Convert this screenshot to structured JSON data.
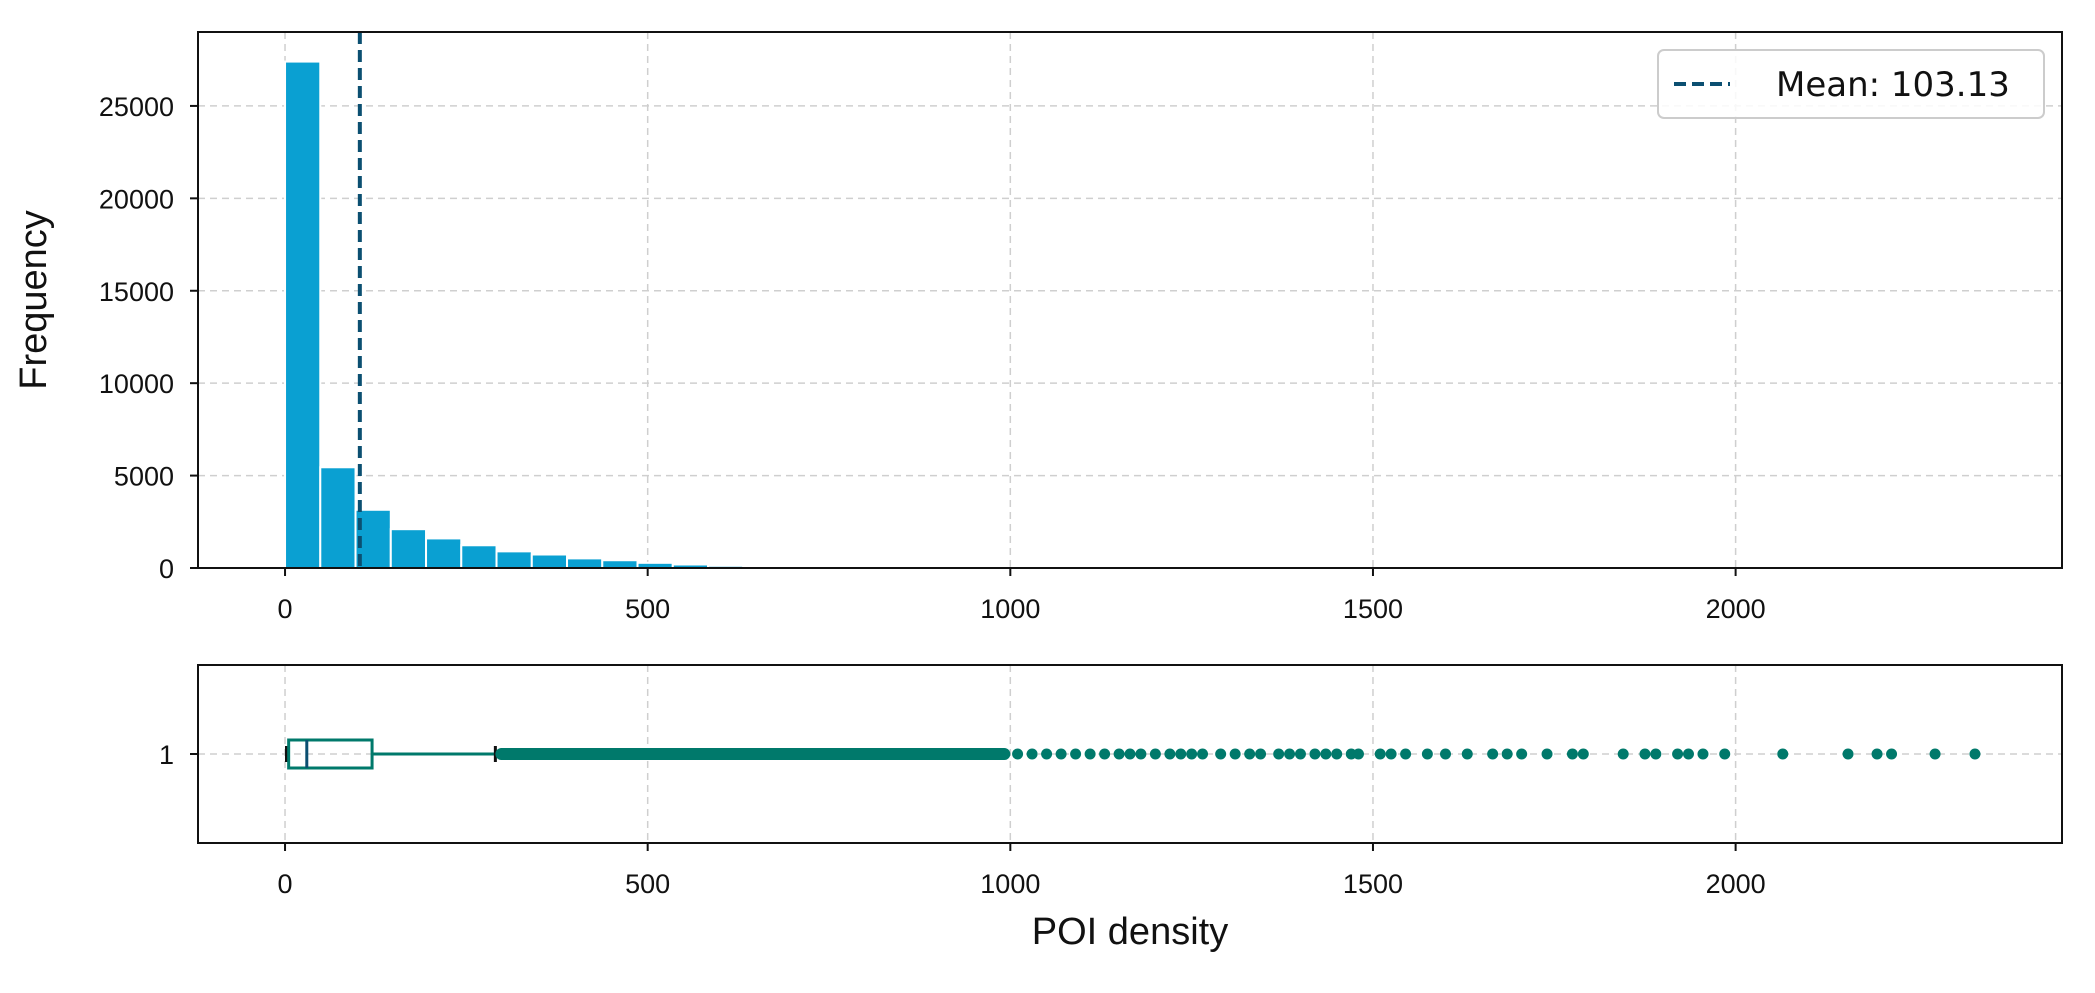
{
  "chart_data": [
    {
      "type": "bar",
      "subtype": "histogram",
      "ylabel": "Frequency",
      "xlabel": "",
      "xlim": [
        -120,
        2450
      ],
      "ylim": [
        0,
        29000
      ],
      "xticks": [
        0,
        500,
        1000,
        1500,
        2000
      ],
      "yticks": [
        0,
        5000,
        10000,
        15000,
        20000,
        25000
      ],
      "bin_width": 48.6,
      "bin_start": 0,
      "values": [
        27400,
        5450,
        3150,
        2100,
        1600,
        1230,
        900,
        730,
        520,
        420,
        280,
        190,
        120,
        80,
        55,
        38,
        25,
        18,
        12,
        8,
        6,
        5,
        4,
        3,
        2,
        2,
        1,
        1,
        1,
        1,
        1,
        1,
        1,
        1,
        1,
        1,
        1,
        1,
        1,
        1,
        1,
        1,
        1,
        1,
        1,
        1,
        1,
        1
      ],
      "bar_color": "#0aa0d2",
      "mean": 103.13,
      "mean_color": "#0b4f71",
      "grid": true,
      "legend": {
        "position": "top-right",
        "entries": [
          "Mean: 103.13"
        ]
      }
    },
    {
      "type": "boxplot",
      "orientation": "horizontal",
      "xlabel": "POI density",
      "xlim": [
        -120,
        2450
      ],
      "xticks": [
        0,
        500,
        1000,
        1500,
        2000
      ],
      "ytick_labels": [
        "1"
      ],
      "color": "#00796b",
      "whisker_low": 2,
      "q1": 5,
      "median": 30,
      "q3": 120,
      "whisker_high": 290,
      "outlier_dense_range": [
        290,
        1000
      ],
      "outliers": [
        1010,
        1030,
        1050,
        1070,
        1090,
        1110,
        1130,
        1150,
        1165,
        1180,
        1200,
        1220,
        1235,
        1250,
        1265,
        1290,
        1310,
        1330,
        1345,
        1370,
        1385,
        1400,
        1420,
        1435,
        1450,
        1470,
        1480,
        1510,
        1525,
        1545,
        1575,
        1600,
        1630,
        1665,
        1685,
        1705,
        1740,
        1775,
        1790,
        1845,
        1875,
        1890,
        1920,
        1935,
        1955,
        1985,
        2065,
        2155,
        2195,
        2215,
        2275,
        2330
      ]
    }
  ]
}
